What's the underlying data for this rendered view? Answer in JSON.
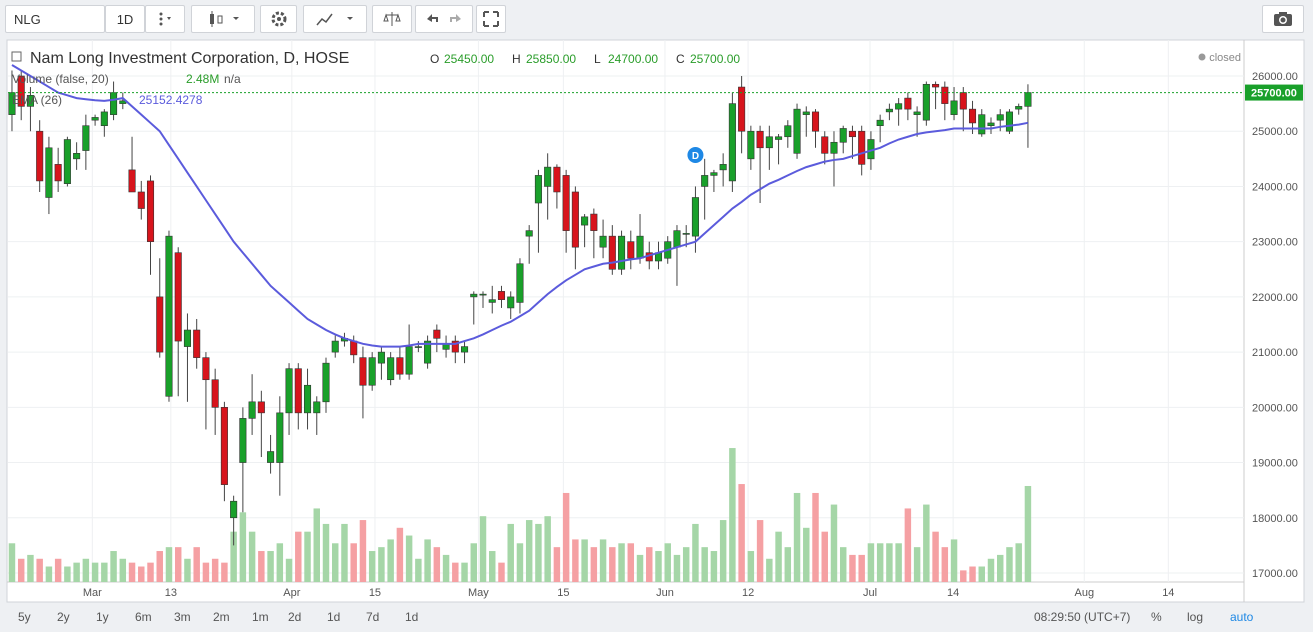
{
  "toolbar": {
    "symbol": "NLG",
    "interval": "1D"
  },
  "legend": {
    "title": "Nam Long Investment Corporation, D, HOSE",
    "ohlc": [
      {
        "label": "O",
        "value": "25450.00"
      },
      {
        "label": "H",
        "value": "25850.00"
      },
      {
        "label": "L",
        "value": "24700.00"
      },
      {
        "label": "C",
        "value": "25700.00"
      }
    ],
    "status": "closed",
    "volume_title": "Volume (false, 20)",
    "volume_value": "2.48M",
    "volume_extra": "n/a",
    "ema_title": "EMA (26)",
    "ema_value": "25152.4278"
  },
  "chart_data": {
    "type": "candlestick",
    "up_color": "#19a02a",
    "down_color": "#d7141c",
    "volume_up_color": "#a5d6a7",
    "volume_down_color": "#f5a0a3",
    "ema_color": "#5b5bdc",
    "xlim": [
      -0.43,
      132.96
    ],
    "xticks": [
      {
        "value": 8.7,
        "label": "Mar"
      },
      {
        "value": 17.2,
        "label": "13"
      },
      {
        "value": 30.3,
        "label": "Apr"
      },
      {
        "value": 39.3,
        "label": "15"
      },
      {
        "value": 50.5,
        "label": "May"
      },
      {
        "value": 59.7,
        "label": "15"
      },
      {
        "value": 70.7,
        "label": "Jun"
      },
      {
        "value": 79.7,
        "label": "12"
      },
      {
        "value": 92.9,
        "label": "Jul"
      },
      {
        "value": 101.9,
        "label": "14"
      },
      {
        "value": 116.1,
        "label": "Aug"
      },
      {
        "value": 125.2,
        "label": "14"
      }
    ],
    "ylim": [
      16837,
      26652
    ],
    "yticks": [
      {
        "value": 17000,
        "label": "17000.00"
      },
      {
        "value": 18000,
        "label": "18000.00"
      },
      {
        "value": 19000,
        "label": "19000.00"
      },
      {
        "value": 20000,
        "label": "20000.00"
      },
      {
        "value": 21000,
        "label": "21000.00"
      },
      {
        "value": 22000,
        "label": "22000.00"
      },
      {
        "value": 23000,
        "label": "23000.00"
      },
      {
        "value": 24000,
        "label": "24000.00"
      },
      {
        "value": 25000,
        "label": "25000.00"
      },
      {
        "value": 26000,
        "label": "26000.00"
      }
    ],
    "grid": true,
    "price_line": {
      "value": 25700,
      "label": "25700.00"
    },
    "vlim": [
      0,
      14000000
    ],
    "dividend": {
      "index": 74,
      "label": "D"
    },
    "candles": [
      [
        25300,
        26100,
        25000,
        25700
      ],
      [
        26000,
        26100,
        25200,
        25450
      ],
      [
        25450,
        25800,
        25000,
        25650
      ],
      [
        25000,
        25200,
        23900,
        24100
      ],
      [
        23800,
        24900,
        23500,
        24700
      ],
      [
        24400,
        24700,
        23900,
        24100
      ],
      [
        24050,
        24900,
        24000,
        24850
      ],
      [
        24500,
        24800,
        24300,
        24600
      ],
      [
        24650,
        25300,
        24300,
        25100
      ],
      [
        25200,
        25300,
        25100,
        25250
      ],
      [
        25100,
        25400,
        24900,
        25350
      ],
      [
        25300,
        25900,
        25200,
        25700
      ],
      [
        25500,
        25700,
        25400,
        25550
      ],
      [
        24300,
        24900,
        23900,
        23900
      ],
      [
        23900,
        24100,
        23400,
        23600
      ],
      [
        24100,
        24200,
        22400,
        23000
      ],
      [
        22000,
        22700,
        20900,
        21000
      ],
      [
        20200,
        23200,
        20100,
        23100
      ],
      [
        22800,
        22900,
        20200,
        21200
      ],
      [
        21100,
        21700,
        20100,
        21400
      ],
      [
        21400,
        21600,
        20700,
        20900
      ],
      [
        20900,
        21000,
        19600,
        20500
      ],
      [
        20500,
        20700,
        19500,
        20000
      ],
      [
        20000,
        20100,
        18300,
        18600
      ],
      [
        18000,
        18400,
        17500,
        18300
      ],
      [
        19000,
        20000,
        18100,
        19800
      ],
      [
        19800,
        20600,
        19500,
        20100
      ],
      [
        20100,
        20300,
        19100,
        19900
      ],
      [
        19000,
        19500,
        18800,
        19200
      ],
      [
        19000,
        20200,
        18400,
        19900
      ],
      [
        19900,
        20800,
        19500,
        20700
      ],
      [
        20700,
        20800,
        19600,
        19900
      ],
      [
        19900,
        20700,
        19600,
        20400
      ],
      [
        19900,
        20200,
        19500,
        20100
      ],
      [
        20100,
        20900,
        19900,
        20800
      ],
      [
        21000,
        21300,
        20900,
        21200
      ],
      [
        21200,
        21350,
        21100,
        21250
      ],
      [
        21200,
        21300,
        20800,
        20950
      ],
      [
        20900,
        21100,
        19800,
        20400
      ],
      [
        20400,
        21000,
        20300,
        20900
      ],
      [
        20800,
        21100,
        20500,
        21000
      ],
      [
        20500,
        21000,
        20400,
        20900
      ],
      [
        20900,
        21100,
        20500,
        20600
      ],
      [
        20600,
        21500,
        20500,
        21100
      ],
      [
        21100,
        21200,
        21000,
        21100
      ],
      [
        20800,
        21300,
        20700,
        21200
      ],
      [
        21400,
        21500,
        21000,
        21250
      ],
      [
        21050,
        21300,
        20900,
        21150
      ],
      [
        21200,
        21300,
        20800,
        21000
      ],
      [
        21000,
        21200,
        20800,
        21100
      ],
      [
        22000,
        22100,
        21500,
        22050
      ],
      [
        22050,
        22100,
        21800,
        22050
      ],
      [
        21900,
        22200,
        21700,
        21950
      ],
      [
        22100,
        22200,
        21800,
        21950
      ],
      [
        21800,
        22100,
        21600,
        22000
      ],
      [
        21900,
        22700,
        21700,
        22600
      ],
      [
        23100,
        23300,
        22600,
        23200
      ],
      [
        23700,
        24300,
        22800,
        24200
      ],
      [
        24000,
        24600,
        23400,
        24350
      ],
      [
        24350,
        24400,
        23600,
        23900
      ],
      [
        24200,
        24300,
        22800,
        23200
      ],
      [
        23900,
        24000,
        22500,
        22900
      ],
      [
        23300,
        23500,
        22900,
        23450
      ],
      [
        23500,
        23600,
        22700,
        23200
      ],
      [
        22900,
        23400,
        22700,
        23100
      ],
      [
        23100,
        23300,
        22400,
        22500
      ],
      [
        22500,
        23200,
        22400,
        23100
      ],
      [
        23000,
        23200,
        22500,
        22700
      ],
      [
        22700,
        23500,
        22600,
        23100
      ],
      [
        22800,
        23000,
        22500,
        22650
      ],
      [
        22650,
        23000,
        22500,
        22800
      ],
      [
        22700,
        23100,
        22600,
        23000
      ],
      [
        22900,
        23300,
        22200,
        23200
      ],
      [
        23150,
        23300,
        22900,
        23150
      ],
      [
        23100,
        24000,
        22800,
        23800
      ],
      [
        24000,
        24500,
        23400,
        24200
      ],
      [
        24200,
        24300,
        23900,
        24250
      ],
      [
        24300,
        24600,
        24000,
        24400
      ],
      [
        24100,
        25700,
        23900,
        25500
      ],
      [
        25800,
        26000,
        24600,
        25000
      ],
      [
        24500,
        25100,
        24300,
        25000
      ],
      [
        25000,
        25100,
        23700,
        24700
      ],
      [
        24700,
        25100,
        24300,
        24900
      ],
      [
        24850,
        24950,
        24400,
        24900
      ],
      [
        24900,
        25200,
        24700,
        25100
      ],
      [
        24600,
        25500,
        24500,
        25400
      ],
      [
        25300,
        25450,
        24900,
        25350
      ],
      [
        25350,
        25400,
        24700,
        25000
      ],
      [
        24900,
        25000,
        24400,
        24600
      ],
      [
        24600,
        25000,
        24000,
        24800
      ],
      [
        24800,
        25100,
        24600,
        25050
      ],
      [
        25000,
        25100,
        24500,
        24900
      ],
      [
        25000,
        25100,
        24200,
        24400
      ],
      [
        24500,
        25000,
        24300,
        24850
      ],
      [
        25100,
        25300,
        24800,
        25200
      ],
      [
        25350,
        25500,
        25200,
        25400
      ],
      [
        25400,
        25600,
        25100,
        25500
      ],
      [
        25600,
        25700,
        25200,
        25400
      ],
      [
        25300,
        25450,
        24900,
        25350
      ],
      [
        25200,
        25900,
        25100,
        25850
      ],
      [
        25850,
        25900,
        25400,
        25800
      ],
      [
        25800,
        25900,
        25200,
        25500
      ],
      [
        25300,
        25800,
        25200,
        25550
      ],
      [
        25700,
        25800,
        25000,
        25400
      ],
      [
        25400,
        25550,
        24950,
        25150
      ],
      [
        24950,
        25400,
        24900,
        25300
      ],
      [
        25100,
        25250,
        24950,
        25150
      ],
      [
        25200,
        25400,
        25000,
        25300
      ],
      [
        25000,
        25400,
        24950,
        25350
      ],
      [
        25400,
        25500,
        25300,
        25450
      ],
      [
        25450,
        25850,
        24700,
        25700
      ]
    ],
    "volumes": [
      1000000,
      600000,
      700000,
      600000,
      400000,
      600000,
      400000,
      500000,
      600000,
      500000,
      500000,
      800000,
      600000,
      500000,
      400000,
      500000,
      800000,
      900000,
      900000,
      600000,
      900000,
      500000,
      600000,
      500000,
      1300000,
      1800000,
      1300000,
      800000,
      800000,
      1000000,
      600000,
      1300000,
      1300000,
      1900000,
      1500000,
      1000000,
      1500000,
      1000000,
      1600000,
      800000,
      900000,
      1100000,
      1400000,
      1200000,
      600000,
      1100000,
      900000,
      700000,
      500000,
      500000,
      1000000,
      1700000,
      800000,
      500000,
      1500000,
      1000000,
      1600000,
      1500000,
      1700000,
      900000,
      2300000,
      1100000,
      1100000,
      900000,
      1100000,
      900000,
      1000000,
      1000000,
      700000,
      900000,
      800000,
      1000000,
      700000,
      900000,
      1500000,
      900000,
      800000,
      1600000,
      3460000,
      2530000,
      800000,
      1600000,
      600000,
      1300000,
      900000,
      2300000,
      1400000,
      2300000,
      1300000,
      2000000,
      900000,
      700000,
      700000,
      1000000,
      1000000,
      1000000,
      1000000,
      1900000,
      900000,
      2000000,
      1300000,
      900000,
      1100000,
      300000,
      400000,
      400000,
      600000,
      700000,
      900000,
      1000000,
      2480000
    ],
    "ema": [
      26200,
      26100,
      26000,
      25900,
      25800,
      25700,
      25650,
      25600,
      25580,
      25560,
      25550,
      25570,
      25600,
      25450,
      25300,
      25150,
      25000,
      24750,
      24500,
      24250,
      24000,
      23750,
      23500,
      23250,
      23000,
      22800,
      22600,
      22400,
      22200,
      22050,
      21900,
      21750,
      21600,
      21500,
      21400,
      21320,
      21250,
      21200,
      21150,
      21120,
      21100,
      21100,
      21100,
      21120,
      21150,
      21150,
      21150,
      21150,
      21150,
      21200,
      21250,
      21320,
      21400,
      21480,
      21550,
      21650,
      21750,
      21900,
      22050,
      22180,
      22300,
      22400,
      22500,
      22550,
      22600,
      22620,
      22650,
      22680,
      22700,
      22750,
      22800,
      22850,
      22900,
      22950,
      23000,
      23150,
      23300,
      23450,
      23600,
      23720,
      23850,
      23950,
      24050,
      24120,
      24200,
      24280,
      24350,
      24400,
      24450,
      24480,
      24500,
      24550,
      24600,
      24650,
      24700,
      24780,
      24850,
      24900,
      24950,
      24980,
      25000,
      25020,
      25050,
      25050,
      25050,
      25050,
      25050,
      25080,
      25100,
      25120,
      25152.4278
    ]
  },
  "footer": {
    "ranges": [
      "5y",
      "2y",
      "1y",
      "6m",
      "3m",
      "2m",
      "1m",
      "2d",
      "1d",
      "7d",
      "1d"
    ],
    "time": "08:29:50 (UTC+7)",
    "percent": "%",
    "log": "log",
    "auto": "auto"
  }
}
